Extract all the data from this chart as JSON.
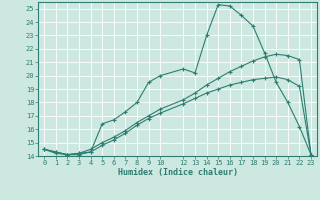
{
  "xlabel": "Humidex (Indice chaleur)",
  "background_color": "#cce8e0",
  "grid_color": "#ffffff",
  "line_color": "#2e7d72",
  "ylim": [
    14,
    25.5
  ],
  "xlim": [
    -0.5,
    23.5
  ],
  "yticks": [
    14,
    15,
    16,
    17,
    18,
    19,
    20,
    21,
    22,
    23,
    24,
    25
  ],
  "xticks": [
    0,
    1,
    2,
    3,
    4,
    5,
    6,
    7,
    8,
    9,
    10,
    12,
    13,
    14,
    15,
    16,
    17,
    18,
    19,
    20,
    21,
    22,
    23
  ],
  "line1_x": [
    0,
    1,
    2,
    3,
    4,
    5,
    6,
    7,
    8,
    9,
    10,
    12,
    13,
    14,
    15,
    16,
    17,
    18,
    19,
    20,
    21,
    22,
    23
  ],
  "line1_y": [
    14.5,
    14.2,
    14.1,
    14.2,
    14.3,
    16.4,
    16.7,
    17.3,
    18.0,
    19.5,
    20.0,
    20.5,
    20.2,
    23.0,
    25.3,
    25.2,
    24.5,
    23.7,
    21.7,
    19.5,
    18.0,
    16.2,
    14.1
  ],
  "line2_x": [
    0,
    1,
    2,
    3,
    4,
    5,
    6,
    7,
    8,
    9,
    10,
    12,
    13,
    14,
    15,
    16,
    17,
    18,
    19,
    20,
    21,
    22,
    23
  ],
  "line2_y": [
    14.5,
    14.3,
    14.1,
    14.2,
    14.5,
    15.0,
    15.4,
    15.9,
    16.5,
    17.0,
    17.5,
    18.2,
    18.7,
    19.3,
    19.8,
    20.3,
    20.7,
    21.1,
    21.4,
    21.6,
    21.5,
    21.2,
    14.1
  ],
  "line3_x": [
    0,
    1,
    2,
    3,
    4,
    5,
    6,
    7,
    8,
    9,
    10,
    12,
    13,
    14,
    15,
    16,
    17,
    18,
    19,
    20,
    21,
    22,
    23
  ],
  "line3_y": [
    14.5,
    14.3,
    14.1,
    14.1,
    14.3,
    14.8,
    15.2,
    15.7,
    16.3,
    16.8,
    17.2,
    17.9,
    18.3,
    18.7,
    19.0,
    19.3,
    19.5,
    19.7,
    19.8,
    19.9,
    19.7,
    19.2,
    14.1
  ]
}
